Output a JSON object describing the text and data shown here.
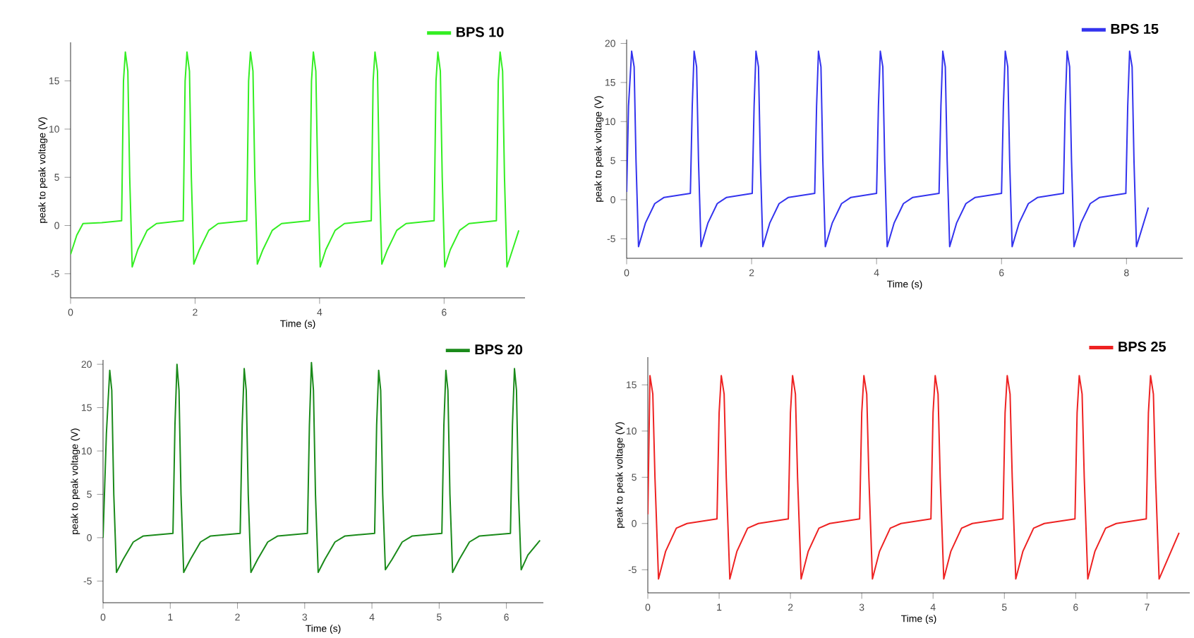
{
  "chart_data": [
    {
      "type": "line",
      "xlabel": "Time (s)",
      "ylabel": "peak to peak voltage (V)",
      "xlim": [
        0,
        7.3
      ],
      "ylim": [
        -7.5,
        19
      ],
      "xticks": [
        0,
        2,
        4,
        6
      ],
      "yticks": [
        -5,
        0,
        5,
        10,
        15
      ],
      "legend": "top right",
      "grid": false,
      "series": [
        {
          "name": "BPS 10",
          "color": "#33ee22",
          "x": [
            0,
            0.1,
            0.2,
            0.5,
            0.82,
            0.85,
            0.88,
            0.92,
            0.95,
            0.99,
            1.08,
            1.23,
            1.38,
            1.81,
            1.84,
            1.87,
            1.91,
            1.94,
            1.98,
            2.07,
            2.22,
            2.37,
            2.83,
            2.86,
            2.89,
            2.93,
            2.96,
            3.0,
            3.09,
            3.24,
            3.39,
            3.84,
            3.87,
            3.9,
            3.94,
            3.97,
            4.01,
            4.1,
            4.25,
            4.4,
            4.83,
            4.86,
            4.89,
            4.93,
            4.96,
            5.0,
            5.09,
            5.24,
            5.39,
            5.84,
            5.87,
            5.9,
            5.94,
            5.97,
            6.01,
            6.1,
            6.25,
            6.4,
            6.84,
            6.87,
            6.9,
            6.94,
            6.97,
            7.01,
            7.1,
            7.2
          ],
          "values": [
            -3,
            -1,
            0.2,
            0.3,
            0.5,
            15,
            18,
            16,
            5,
            -4.3,
            -2.5,
            -0.5,
            0.2,
            0.5,
            15,
            18,
            16,
            5,
            -4,
            -2.5,
            -0.5,
            0.2,
            0.5,
            15,
            18,
            16,
            5,
            -4,
            -2.5,
            -0.5,
            0.2,
            0.5,
            15,
            18,
            16,
            5,
            -4.3,
            -2.5,
            -0.5,
            0.2,
            0.5,
            15,
            18,
            16,
            5,
            -4,
            -2.5,
            -0.5,
            0.2,
            0.5,
            15,
            18,
            16,
            5,
            -4.3,
            -2.5,
            -0.5,
            0.2,
            0.5,
            15,
            18,
            16,
            5,
            -4.3,
            -2.5,
            -0.5
          ]
        }
      ]
    },
    {
      "type": "line",
      "xlabel": "Time (s)",
      "ylabel": "peak to peak voltage (V)",
      "xlim": [
        0,
        8.9
      ],
      "ylim": [
        -7.5,
        20.5
      ],
      "xticks": [
        0,
        2,
        4,
        6,
        8
      ],
      "yticks": [
        -5,
        0,
        5,
        10,
        15,
        20
      ],
      "legend": "top right",
      "grid": false,
      "series": [
        {
          "name": "BPS 15",
          "color": "#3333ee",
          "x": [
            0,
            0.03,
            0.08,
            0.12,
            0.15,
            0.19,
            0.3,
            0.45,
            0.6,
            1.02,
            1.05,
            1.08,
            1.12,
            1.15,
            1.19,
            1.3,
            1.45,
            1.6,
            2.01,
            2.04,
            2.07,
            2.11,
            2.14,
            2.18,
            2.29,
            2.44,
            2.59,
            3.01,
            3.04,
            3.07,
            3.11,
            3.14,
            3.18,
            3.29,
            3.44,
            3.59,
            4.0,
            4.03,
            4.06,
            4.1,
            4.13,
            4.17,
            4.28,
            4.43,
            4.58,
            5.0,
            5.03,
            5.06,
            5.1,
            5.13,
            5.17,
            5.28,
            5.43,
            5.58,
            6.0,
            6.03,
            6.06,
            6.1,
            6.13,
            6.17,
            6.28,
            6.43,
            6.58,
            6.99,
            7.02,
            7.05,
            7.09,
            7.12,
            7.16,
            7.27,
            7.42,
            7.57,
            7.99,
            8.02,
            8.05,
            8.09,
            8.12,
            8.16,
            8.35
          ],
          "values": [
            1,
            12,
            19,
            17,
            5,
            -6,
            -3,
            -0.5,
            0.3,
            0.8,
            12,
            19,
            17,
            5,
            -6,
            -3,
            -0.5,
            0.3,
            0.8,
            12,
            19,
            17,
            5,
            -6,
            -3,
            -0.5,
            0.3,
            0.8,
            12,
            19,
            17,
            5,
            -6,
            -3,
            -0.5,
            0.3,
            0.8,
            12,
            19,
            17,
            5,
            -6,
            -3,
            -0.5,
            0.3,
            0.8,
            12,
            19,
            17,
            5,
            -6,
            -3,
            -0.5,
            0.3,
            0.8,
            12,
            19,
            17,
            5,
            -6,
            -3,
            -0.5,
            0.3,
            0.8,
            12,
            19,
            17,
            5,
            -6,
            -3,
            -0.5,
            0.3,
            0.8,
            12,
            19,
            17,
            5,
            -6,
            -1
          ]
        }
      ]
    },
    {
      "type": "line",
      "xlabel": "Time (s)",
      "ylabel": "peak to peak voltage (V)",
      "xlim": [
        0,
        6.55
      ],
      "ylim": [
        -7.5,
        20.5
      ],
      "xticks": [
        0,
        1,
        2,
        3,
        4,
        5,
        6
      ],
      "yticks": [
        -5,
        0,
        5,
        10,
        15,
        20
      ],
      "legend": "top right",
      "grid": false,
      "series": [
        {
          "name": "BPS 20",
          "color": "#1a8a1a",
          "x": [
            0,
            0.05,
            0.1,
            0.13,
            0.16,
            0.2,
            0.3,
            0.45,
            0.6,
            1.04,
            1.07,
            1.1,
            1.13,
            1.16,
            1.2,
            1.3,
            1.45,
            1.6,
            2.04,
            2.07,
            2.1,
            2.13,
            2.16,
            2.2,
            2.3,
            2.45,
            2.6,
            3.04,
            3.07,
            3.1,
            3.13,
            3.16,
            3.2,
            3.3,
            3.45,
            3.6,
            4.04,
            4.07,
            4.1,
            4.13,
            4.16,
            4.2,
            4.3,
            4.45,
            4.6,
            5.04,
            5.07,
            5.1,
            5.13,
            5.16,
            5.2,
            5.3,
            5.45,
            5.6,
            6.06,
            6.09,
            6.12,
            6.15,
            6.18,
            6.22,
            6.32,
            6.5
          ],
          "values": [
            0,
            12,
            19.3,
            17,
            5,
            -4,
            -2.5,
            -0.5,
            0.2,
            0.5,
            13,
            20,
            17,
            5,
            -4,
            -2.5,
            -0.5,
            0.2,
            0.5,
            13,
            19.5,
            17,
            5,
            -4,
            -2.5,
            -0.5,
            0.2,
            0.5,
            13,
            20.2,
            17,
            5,
            -4,
            -2.5,
            -0.5,
            0.2,
            0.5,
            13,
            19.3,
            17,
            5,
            -3.7,
            -2.5,
            -0.5,
            0.2,
            0.5,
            13,
            19.3,
            17,
            5,
            -4,
            -2.5,
            -0.5,
            0.2,
            0.5,
            13,
            19.5,
            17,
            5,
            -3.7,
            -2,
            -0.3
          ]
        }
      ]
    },
    {
      "type": "line",
      "xlabel": "Time (s)",
      "ylabel": "peak to peak voltage (V)",
      "xlim": [
        0,
        7.6
      ],
      "ylim": [
        -7.5,
        18
      ],
      "xticks": [
        0,
        1,
        2,
        3,
        4,
        5,
        6,
        7
      ],
      "yticks": [
        -5,
        0,
        5,
        10,
        15
      ],
      "legend": "top right",
      "grid": false,
      "series": [
        {
          "name": "BPS 25",
          "color": "#ee2222",
          "x": [
            0,
            0.03,
            0.07,
            0.1,
            0.15,
            0.25,
            0.4,
            0.55,
            0.97,
            1.0,
            1.03,
            1.07,
            1.1,
            1.15,
            1.25,
            1.4,
            1.55,
            1.97,
            2.0,
            2.03,
            2.07,
            2.1,
            2.15,
            2.25,
            2.4,
            2.55,
            2.97,
            3.0,
            3.03,
            3.07,
            3.1,
            3.15,
            3.25,
            3.4,
            3.55,
            3.97,
            4.0,
            4.03,
            4.07,
            4.1,
            4.15,
            4.25,
            4.4,
            4.55,
            4.98,
            5.01,
            5.04,
            5.08,
            5.11,
            5.16,
            5.26,
            5.41,
            5.56,
            5.99,
            6.02,
            6.05,
            6.09,
            6.12,
            6.17,
            6.27,
            6.42,
            6.57,
            6.99,
            7.02,
            7.05,
            7.09,
            7.12,
            7.17,
            7.45
          ],
          "values": [
            1,
            16,
            14,
            5,
            -6,
            -3,
            -0.5,
            0,
            0.5,
            12,
            16,
            14,
            5,
            -6,
            -3,
            -0.5,
            0,
            0.5,
            12,
            16,
            14,
            5,
            -6,
            -3,
            -0.5,
            0,
            0.5,
            12,
            16,
            14,
            5,
            -6,
            -3,
            -0.5,
            0,
            0.5,
            12,
            16,
            14,
            5,
            -6,
            -3,
            -0.5,
            0,
            0.5,
            12,
            16,
            14,
            5,
            -6,
            -3,
            -0.5,
            0,
            0.5,
            12,
            16,
            14,
            5,
            -6,
            -3,
            -0.5,
            0,
            0.5,
            12,
            16,
            14,
            5,
            -6,
            -1
          ]
        }
      ]
    }
  ]
}
